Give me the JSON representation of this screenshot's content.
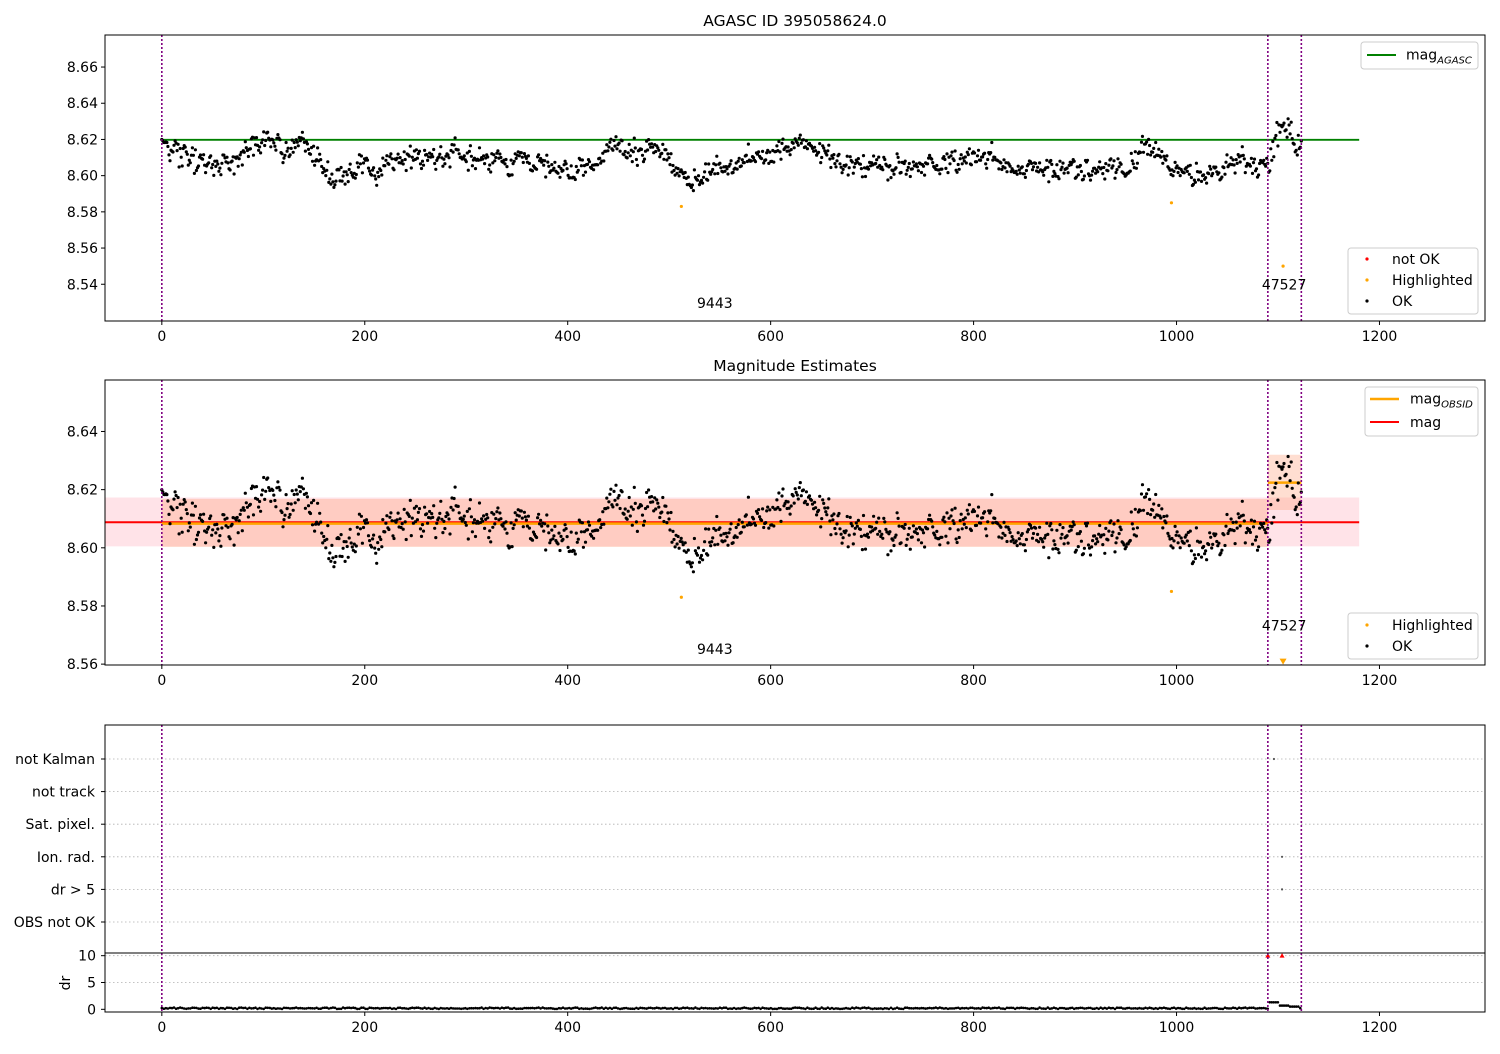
{
  "colors": {
    "ok": "#000000",
    "highlighted": "#ffa500",
    "not_ok": "#ff0000",
    "mag_agasc": "#008000",
    "mag_obsid": "#ffa500",
    "mag": "#ff0000",
    "obsid_divider": "#800080",
    "band_mag": "#ffc0cb",
    "band_obsid": "#ffa07a"
  },
  "chart_data": [
    {
      "type": "scatter",
      "title": "AGASC ID 395058624.0",
      "xlim": [
        -56,
        1304
      ],
      "ylim": [
        8.5197,
        8.6777
      ],
      "yticks": [
        8.54,
        8.56,
        8.58,
        8.6,
        8.62,
        8.64,
        8.66
      ],
      "xticks": [
        0,
        200,
        400,
        600,
        800,
        1000,
        1200
      ],
      "grid": false,
      "legend_lines": {
        "location": "top-right",
        "entries": [
          {
            "label": "mag",
            "subscript": "AGASC"
          }
        ]
      },
      "legend_points": {
        "location": "bottom-right",
        "entries": [
          "not OK",
          "Highlighted",
          "OK"
        ]
      },
      "lines": [
        {
          "name": "mag_AGASC",
          "y": 8.6198,
          "x": [
            0,
            1180
          ]
        }
      ],
      "obsid_boundaries": [
        0,
        1090,
        1123
      ],
      "obsid_labels": [
        {
          "text": "9443",
          "x": 545,
          "y": 8.527
        },
        {
          "text": "47527",
          "x": 1106,
          "y": 8.537
        }
      ],
      "highlighted_points": [
        {
          "x": 512,
          "y": 8.583
        },
        {
          "x": 995,
          "y": 8.585
        },
        {
          "x": 1105,
          "y": 8.55
        }
      ],
      "not_ok_points": [],
      "ok_points": {
        "count": 1120,
        "x_range": [
          0,
          1123
        ],
        "typical_range": [
          8.59,
          8.63
        ],
        "segment_levels": [
          {
            "x": 5,
            "y": 8.612
          },
          {
            "x": 50,
            "y": 8.606
          },
          {
            "x": 100,
            "y": 8.617
          },
          {
            "x": 140,
            "y": 8.616
          },
          {
            "x": 160,
            "y": 8.603
          },
          {
            "x": 200,
            "y": 8.602
          },
          {
            "x": 240,
            "y": 8.611
          },
          {
            "x": 300,
            "y": 8.61
          },
          {
            "x": 350,
            "y": 8.609
          },
          {
            "x": 400,
            "y": 8.601
          },
          {
            "x": 450,
            "y": 8.612
          },
          {
            "x": 490,
            "y": 8.614
          },
          {
            "x": 520,
            "y": 8.598
          },
          {
            "x": 560,
            "y": 8.607
          },
          {
            "x": 620,
            "y": 8.617
          },
          {
            "x": 680,
            "y": 8.608
          },
          {
            "x": 740,
            "y": 8.603
          },
          {
            "x": 800,
            "y": 8.611
          },
          {
            "x": 860,
            "y": 8.602
          },
          {
            "x": 920,
            "y": 8.606
          },
          {
            "x": 980,
            "y": 8.612
          },
          {
            "x": 1000,
            "y": 8.6
          },
          {
            "x": 1060,
            "y": 8.609
          },
          {
            "x": 1090,
            "y": 8.604
          },
          {
            "x": 1100,
            "y": 8.628
          },
          {
            "x": 1123,
            "y": 8.618
          }
        ]
      }
    },
    {
      "type": "scatter",
      "title": "Magnitude Estimates",
      "xlim": [
        -56,
        1304
      ],
      "ylim": [
        8.5597,
        8.6577
      ],
      "yticks": [
        8.56,
        8.58,
        8.6,
        8.62,
        8.64
      ],
      "xticks": [
        0,
        200,
        400,
        600,
        800,
        1000,
        1200
      ],
      "grid": false,
      "legend_lines": {
        "location": "top-right",
        "entries": [
          {
            "label": "mag",
            "subscript": "OBSID"
          },
          {
            "label": "mag",
            "subscript": ""
          }
        ]
      },
      "legend_points": {
        "location": "bottom-right",
        "entries": [
          "Highlighted",
          "OK"
        ]
      },
      "lines": [
        {
          "name": "mag",
          "y": 8.6088,
          "x": [
            -56,
            1180
          ],
          "band": [
            8.6005,
            8.6173
          ]
        },
        {
          "name": "mag_OBSID 9443",
          "y": 8.6083,
          "x": [
            0,
            1090
          ],
          "band": [
            8.6003,
            8.6168
          ]
        },
        {
          "name": "mag_OBSID 47527",
          "y": 8.6224,
          "x": [
            1090,
            1123
          ],
          "band": [
            8.613,
            8.632
          ]
        }
      ],
      "obsid_boundaries": [
        0,
        1090,
        1123
      ],
      "obsid_labels": [
        {
          "text": "9443",
          "x": 545,
          "y": 8.5635
        },
        {
          "text": "47527",
          "x": 1106,
          "y": 8.5715
        }
      ],
      "highlighted_points": [
        {
          "x": 512,
          "y": 8.583
        },
        {
          "x": 995,
          "y": 8.585
        }
      ],
      "highlighted_offscale_marker": {
        "x": 1105,
        "y": 8.5605
      }
    },
    {
      "type": "scatter",
      "title": "",
      "xlim": [
        -56,
        1304
      ],
      "xticks": [
        0,
        200,
        400,
        600,
        800,
        1000,
        1200
      ],
      "flag_rows": [
        "not Kalman",
        "not track",
        "Sat. pixel.",
        "Ion. rad.",
        "dr > 5",
        "OBS not OK"
      ],
      "flag_grid": "dotted",
      "flag_points": [
        {
          "flag": "not Kalman",
          "x": 1096
        },
        {
          "flag": "Ion. rad.",
          "x": 1104
        },
        {
          "flag": "dr > 5",
          "x": 1104
        }
      ],
      "dr": {
        "ylabel": "dr",
        "ylim": [
          -0.5,
          10.5
        ],
        "yticks": [
          0,
          5,
          10
        ],
        "typical_value": 0.2,
        "raised_values": [
          {
            "x": 1095,
            "y": 1.3
          },
          {
            "x": 1105,
            "y": 0.7
          },
          {
            "x": 1115,
            "y": 0.5
          }
        ],
        "not_ok_points": [
          {
            "x": 1090,
            "y": 10
          },
          {
            "x": 1104,
            "y": 10
          }
        ]
      },
      "obsid_boundaries": [
        0,
        1090,
        1123
      ]
    }
  ]
}
